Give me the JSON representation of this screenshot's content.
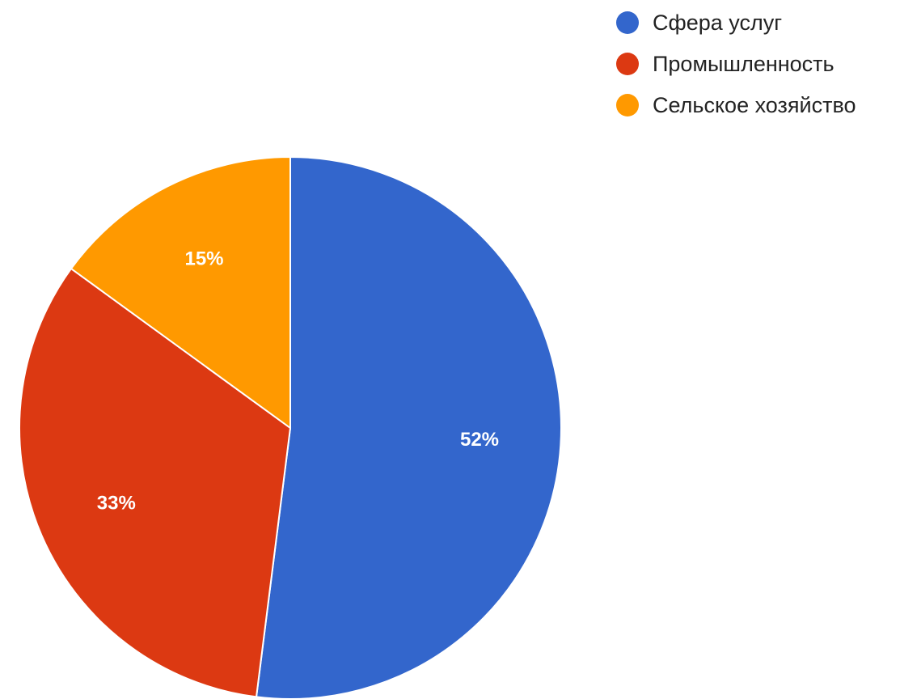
{
  "chart_data": {
    "type": "pie",
    "legend_position": "top-right",
    "slices": [
      {
        "label": "Сфера услуг",
        "value": 52,
        "display": "52%",
        "color": "#3366cc"
      },
      {
        "label": "Промышленность",
        "value": 33,
        "display": "33%",
        "color": "#dc3912"
      },
      {
        "label": "Сельское хозяйство",
        "value": 15,
        "display": "15%",
        "color": "#ff9900"
      }
    ]
  }
}
